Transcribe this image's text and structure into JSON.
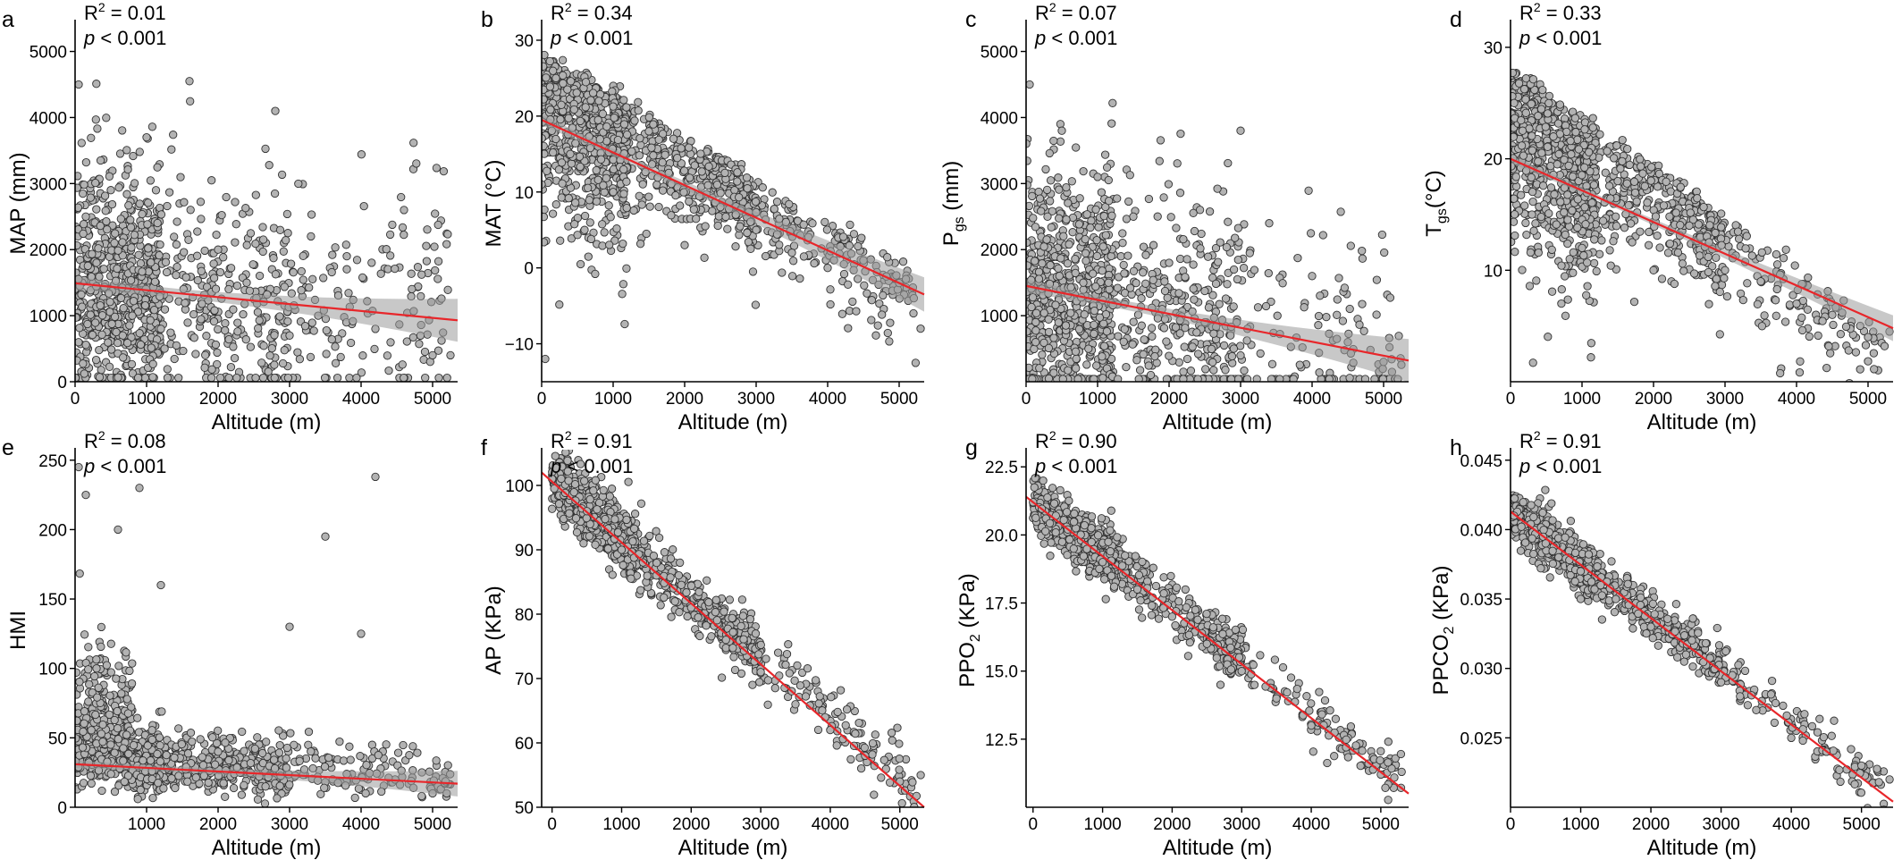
{
  "figure": {
    "x_axis_label": "Altitude (m)",
    "panels": [
      {
        "letter": "a",
        "ylabel": {
          "main": "MAP (mm)",
          "sub": "",
          "rest": ""
        },
        "r2": "0.01",
        "p": "< 0.001",
        "xlim": [
          0,
          5350
        ],
        "ylim": [
          0,
          5400
        ],
        "xticks": [
          0,
          1000,
          2000,
          3000,
          4000,
          5000
        ],
        "yticks": [
          0,
          1000,
          2000,
          3000,
          4000,
          5000
        ],
        "ytick_labels": [
          "0",
          "1000",
          "2000",
          "3000",
          "4000",
          "5000"
        ],
        "fit": {
          "x0": 0,
          "y0": 1490,
          "x1": 5350,
          "y1": 930
        },
        "ci": 0.05
      },
      {
        "letter": "b",
        "ylabel": {
          "main": "MAT (°C)",
          "sub": "",
          "rest": ""
        },
        "r2": "0.34",
        "p": "< 0.001",
        "xlim": [
          0,
          5350
        ],
        "ylim": [
          -15,
          32
        ],
        "xticks": [
          0,
          1000,
          2000,
          3000,
          4000,
          5000
        ],
        "yticks": [
          -10,
          0,
          10,
          20,
          30
        ],
        "ytick_labels": [
          "−10",
          "0",
          "10",
          "20",
          "30"
        ],
        "fit": {
          "x0": 0,
          "y0": 19.5,
          "x1": 5350,
          "y1": -3.5
        },
        "ci": 0.04
      },
      {
        "letter": "c",
        "ylabel": {
          "main": "P",
          "sub": "gs",
          "rest": " (mm)"
        },
        "r2": "0.07",
        "p": "< 0.001",
        "xlim": [
          0,
          5350
        ],
        "ylim": [
          0,
          5400
        ],
        "xticks": [
          0,
          1000,
          2000,
          3000,
          4000,
          5000
        ],
        "yticks": [
          1000,
          2000,
          3000,
          4000,
          5000
        ],
        "ytick_labels": [
          "1000",
          "2000",
          "3000",
          "4000",
          "5000"
        ],
        "fit": {
          "x0": 0,
          "y0": 1450,
          "x1": 5350,
          "y1": 320
        },
        "ci": 0.05
      },
      {
        "letter": "d",
        "ylabel": {
          "main": "T",
          "sub": "gs",
          "rest": "(°C)"
        },
        "r2": "0.33",
        "p": "< 0.001",
        "xlim": [
          0,
          5350
        ],
        "ylim": [
          0,
          32
        ],
        "xticks": [
          0,
          1000,
          2000,
          3000,
          4000,
          5000
        ],
        "yticks": [
          10,
          20,
          30
        ],
        "ytick_labels": [
          "10",
          "20",
          "30"
        ],
        "fit": {
          "x0": 0,
          "y0": 20.0,
          "x1": 5350,
          "y1": 4.8
        },
        "ci": 0.03
      },
      {
        "letter": "e",
        "ylabel": {
          "main": "HMI",
          "sub": "",
          "rest": ""
        },
        "r2": "0.08",
        "p": "< 0.001",
        "xlim": [
          0,
          5350
        ],
        "ylim": [
          0,
          255
        ],
        "xticks": [
          1000,
          2000,
          3000,
          4000,
          5000
        ],
        "yticks": [
          0,
          50,
          100,
          150,
          200,
          250
        ],
        "ytick_labels": [
          "0",
          "50",
          "100",
          "150",
          "200",
          "250"
        ],
        "fit": {
          "x0": 0,
          "y0": 31,
          "x1": 5350,
          "y1": 17
        },
        "ci": 0.03
      },
      {
        "letter": "f",
        "ylabel": {
          "main": "AP (KPa)",
          "sub": "",
          "rest": ""
        },
        "r2": "0.91",
        "p": "< 0.001",
        "xlim": [
          -150,
          5350
        ],
        "ylim": [
          50,
          105
        ],
        "xticks": [
          0,
          1000,
          2000,
          3000,
          4000,
          5000
        ],
        "yticks": [
          50,
          60,
          70,
          80,
          90,
          100
        ],
        "ytick_labels": [
          "50",
          "60",
          "70",
          "80",
          "90",
          "100"
        ],
        "fit": {
          "x0": -150,
          "y0": 102,
          "x1": 5350,
          "y1": 50
        },
        "ci": 0
      },
      {
        "letter": "g",
        "ylabel": {
          "main": "PPO",
          "sub": "2",
          "rest": " (KPa)"
        },
        "r2": "0.90",
        "p": "< 0.001",
        "xlim": [
          -100,
          5400
        ],
        "ylim": [
          10,
          23
        ],
        "xticks": [
          0,
          1000,
          2000,
          3000,
          4000,
          5000
        ],
        "yticks": [
          12.5,
          15.0,
          17.5,
          20.0,
          22.5
        ],
        "ytick_labels": [
          "12.5",
          "15.0",
          "17.5",
          "20.0",
          "22.5"
        ],
        "fit": {
          "x0": -100,
          "y0": 21.4,
          "x1": 5400,
          "y1": 10.5
        },
        "ci": 0
      },
      {
        "letter": "h",
        "ylabel": {
          "main": "PPCO",
          "sub": "2",
          "rest": " (KPa)"
        },
        "r2": "0.91",
        "p": "< 0.001",
        "xlim": [
          0,
          5450
        ],
        "ylim": [
          0.02,
          0.0455
        ],
        "xticks": [
          0,
          1000,
          2000,
          3000,
          4000,
          5000
        ],
        "yticks": [
          0.025,
          0.03,
          0.035,
          0.04,
          0.045
        ],
        "ytick_labels": [
          "0.025",
          "0.030",
          "0.035",
          "0.040",
          "0.045"
        ],
        "fit": {
          "x0": 0,
          "y0": 0.0413,
          "x1": 5450,
          "y1": 0.0204
        },
        "ci": 0
      }
    ]
  },
  "chart_data": [
    {
      "type": "scatter",
      "title": "a",
      "xlabel": "Altitude (m)",
      "ylabel": "MAP (mm)",
      "xlim": [
        0,
        5350
      ],
      "ylim": [
        0,
        5400
      ],
      "r2": 0.01,
      "p": "< 0.001",
      "fit_line": {
        "x": [
          0,
          5350
        ],
        "y": [
          1490,
          930
        ]
      },
      "points_sample": {
        "x": [
          50,
          150,
          300,
          500,
          800,
          1000,
          1200,
          1600,
          2000,
          2400,
          2800,
          3000,
          3400,
          3800,
          4200,
          4600,
          5000,
          5250
        ],
        "y": [
          4500,
          2500,
          1800,
          2900,
          1000,
          3700,
          800,
          4550,
          2000,
          1500,
          4100,
          700,
          1000,
          1900,
          800,
          2600,
          400,
          400
        ]
      }
    },
    {
      "type": "scatter",
      "title": "b",
      "xlabel": "Altitude (m)",
      "ylabel": "MAT (°C)",
      "xlim": [
        0,
        5350
      ],
      "ylim": [
        -15,
        32
      ],
      "r2": 0.34,
      "p": "< 0.001",
      "fit_line": {
        "x": [
          0,
          5350
        ],
        "y": [
          19.5,
          -3.5
        ]
      },
      "points_sample": {
        "x": [
          50,
          200,
          400,
          600,
          800,
          1000,
          1500,
          2000,
          2500,
          3000,
          3500,
          4000,
          4500,
          5000,
          5300
        ],
        "y": [
          -12,
          25,
          15,
          5,
          22,
          10,
          18,
          3,
          8,
          5,
          2,
          0,
          1,
          -2,
          -8
        ]
      }
    },
    {
      "type": "scatter",
      "title": "c",
      "xlabel": "Altitude (m)",
      "ylabel": "Pgs (mm)",
      "xlim": [
        0,
        5350
      ],
      "ylim": [
        0,
        5400
      ],
      "r2": 0.07,
      "p": "< 0.001",
      "fit_line": {
        "x": [
          0,
          5350
        ],
        "y": [
          1450,
          320
        ]
      },
      "points_sample": {
        "x": [
          50,
          300,
          500,
          800,
          1000,
          1500,
          2000,
          2500,
          3000,
          3400,
          4000,
          4500,
          5000
        ],
        "y": [
          4500,
          2500,
          3800,
          1500,
          3100,
          2500,
          1800,
          900,
          3800,
          2400,
          1600,
          600,
          300
        ]
      }
    },
    {
      "type": "scatter",
      "title": "d",
      "xlabel": "Altitude (m)",
      "ylabel": "Tgs(°C)",
      "xlim": [
        0,
        5350
      ],
      "ylim": [
        0,
        32
      ],
      "r2": 0.33,
      "p": "< 0.001",
      "fit_line": {
        "x": [
          0,
          5350
        ],
        "y": [
          20.0,
          4.8
        ]
      },
      "points_sample": {
        "x": [
          50,
          300,
          600,
          1000,
          1500,
          2000,
          2500,
          3000,
          3500,
          4000,
          4500,
          5000,
          5300
        ],
        "y": [
          25,
          15,
          22,
          12,
          18,
          10,
          14,
          10,
          9,
          7,
          6,
          4,
          4.5
        ]
      }
    },
    {
      "type": "scatter",
      "title": "e",
      "xlabel": "Altitude (m)",
      "ylabel": "HMI",
      "xlim": [
        0,
        5350
      ],
      "ylim": [
        0,
        255
      ],
      "r2": 0.08,
      "p": "< 0.001",
      "fit_line": {
        "x": [
          0,
          5350
        ],
        "y": [
          31,
          17
        ]
      },
      "points_sample": {
        "x": [
          50,
          150,
          300,
          600,
          900,
          1200,
          2000,
          3000,
          3500,
          4000,
          4200,
          5000
        ],
        "y": [
          245,
          225,
          100,
          200,
          230,
          160,
          40,
          130,
          195,
          125,
          238,
          10
        ]
      }
    },
    {
      "type": "scatter",
      "title": "f",
      "xlabel": "Altitude (m)",
      "ylabel": "AP (KPa)",
      "xlim": [
        -150,
        5350
      ],
      "ylim": [
        50,
        105
      ],
      "r2": 0.91,
      "p": "< 0.001",
      "fit_line": {
        "x": [
          -150,
          5350
        ],
        "y": [
          102,
          50
        ]
      },
      "points_sample": {
        "x": [
          0,
          500,
          1000,
          1500,
          2000,
          2500,
          3000,
          3500,
          4000,
          4500,
          5000,
          5300
        ],
        "y": [
          101,
          96,
          90,
          86,
          81,
          76,
          71,
          66,
          62,
          58,
          54,
          55
        ]
      }
    },
    {
      "type": "scatter",
      "title": "g",
      "xlabel": "Altitude (m)",
      "ylabel": "PPO2 (KPa)",
      "xlim": [
        -100,
        5400
      ],
      "ylim": [
        10,
        23
      ],
      "r2": 0.9,
      "p": "< 0.001",
      "fit_line": {
        "x": [
          -100,
          5400
        ],
        "y": [
          21.4,
          10.5
        ]
      },
      "points_sample": {
        "x": [
          0,
          500,
          1000,
          1500,
          2000,
          2500,
          3000,
          3500,
          4000,
          4500,
          5000,
          5300
        ],
        "y": [
          21.2,
          20.2,
          19.0,
          18.0,
          17.0,
          16.0,
          15.0,
          14.0,
          13.0,
          12.2,
          11.2,
          11.3
        ]
      }
    },
    {
      "type": "scatter",
      "title": "h",
      "xlabel": "Altitude (m)",
      "ylabel": "PPCO2 (KPa)",
      "xlim": [
        0,
        5450
      ],
      "ylim": [
        0.02,
        0.0455
      ],
      "r2": 0.91,
      "p": "< 0.001",
      "fit_line": {
        "x": [
          0,
          5450
        ],
        "y": [
          0.0413,
          0.0204
        ]
      },
      "points_sample": {
        "x": [
          50,
          500,
          1000,
          1500,
          2000,
          2500,
          3000,
          3500,
          4000,
          4500,
          5000,
          5400
        ],
        "y": [
          0.041,
          0.039,
          0.037,
          0.035,
          0.033,
          0.031,
          0.029,
          0.027,
          0.025,
          0.024,
          0.023,
          0.022
        ]
      }
    }
  ]
}
